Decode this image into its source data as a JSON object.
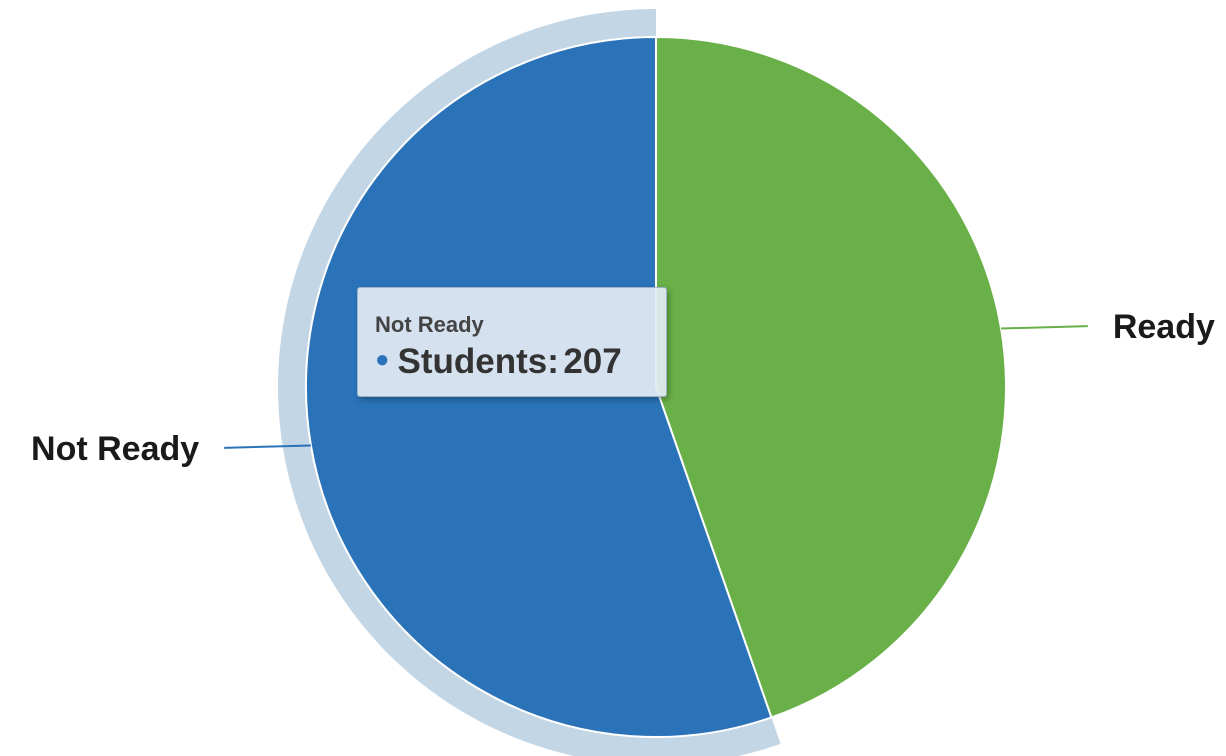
{
  "chart_data": {
    "type": "pie",
    "slices": [
      {
        "label": "Ready",
        "value": 167,
        "color": "#68b047"
      },
      {
        "label": "Not Ready",
        "value": 207,
        "color": "#2a73b9"
      }
    ],
    "hovered_slice": "Not Ready",
    "hover_halo_color": "#c3d6e6",
    "slice_border_color": "#ffffff"
  },
  "tooltip": {
    "header": "Not Ready",
    "series_name": "Students",
    "separator": ":",
    "value": "207",
    "dot": "●",
    "dot_color": "#2a73b9"
  }
}
